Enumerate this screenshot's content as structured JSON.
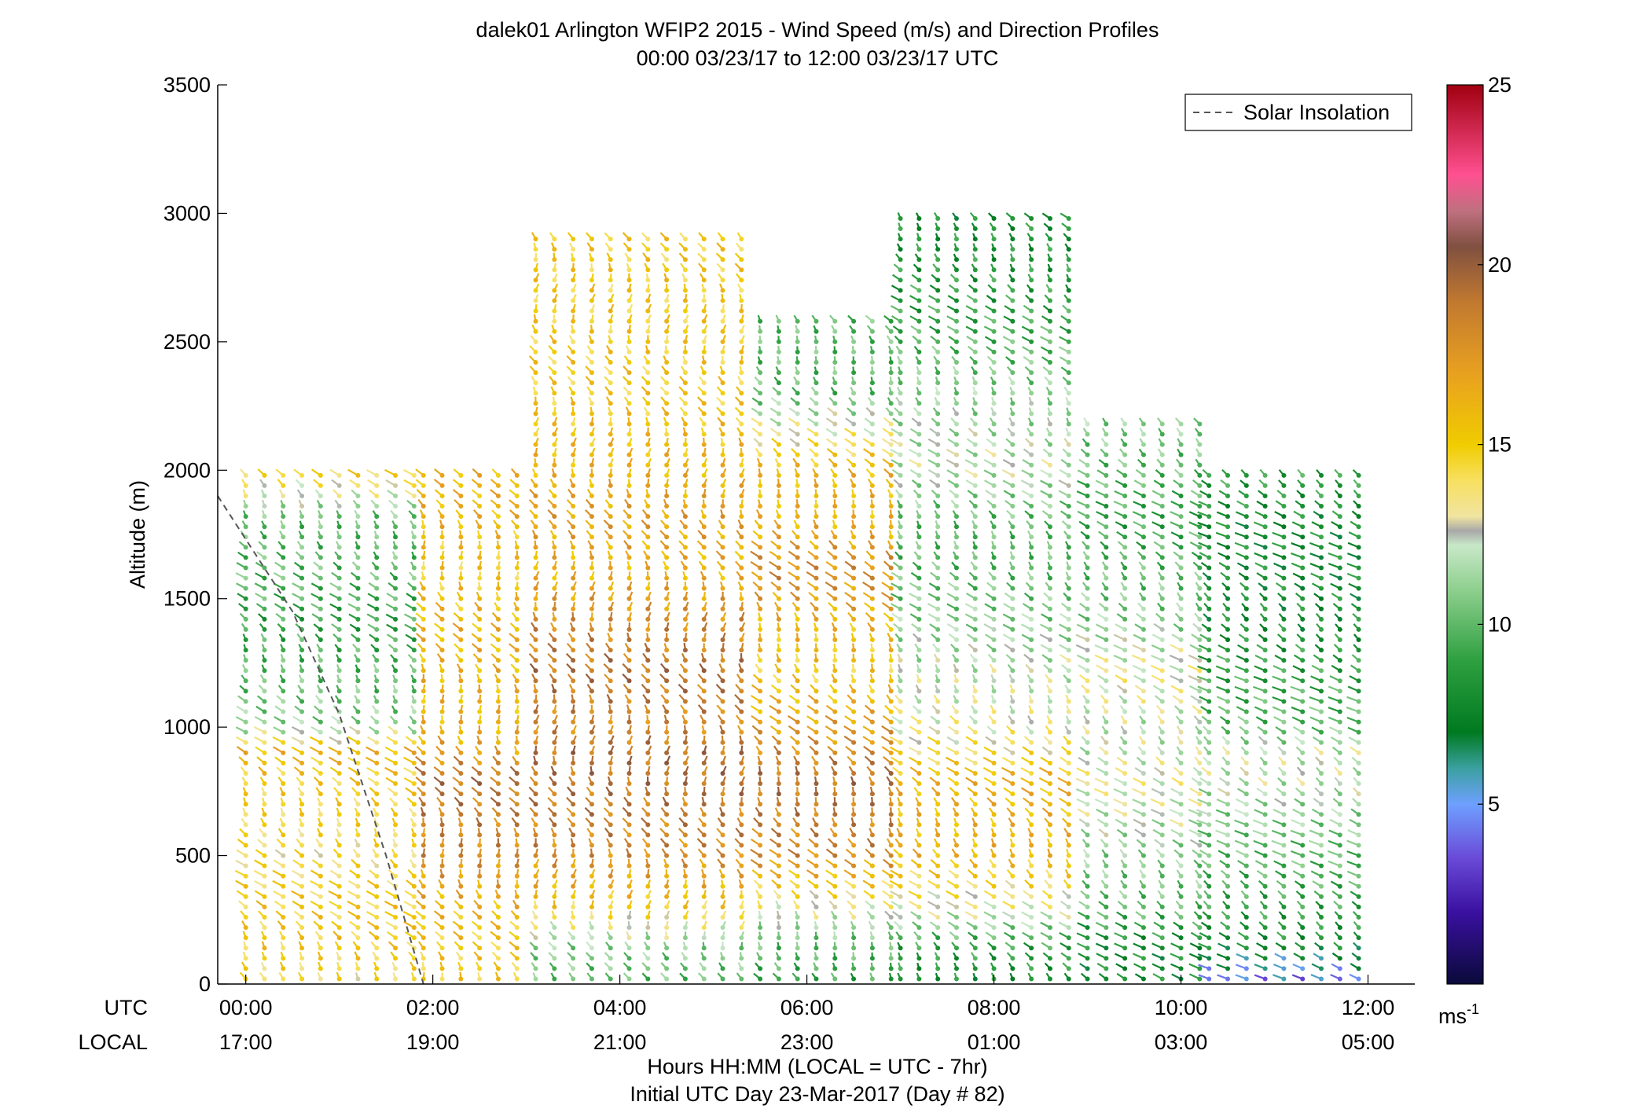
{
  "chart_data": {
    "type": "wind-profile",
    "title_line1": "dalek01 Arlington WFIP2 2015 - Wind Speed (m/s) and Direction Profiles",
    "title_line2": "00:00 03/23/17 to 12:00 03/23/17  UTC",
    "ylabel": "Altitude (m)",
    "xlabel_line1": "Hours HH:MM  (LOCAL = UTC - 7hr)",
    "xlabel_line2": "Initial UTC Day 23-Mar-2017 (Day # 82)",
    "utc_row_label": "UTC",
    "local_row_label": "LOCAL",
    "xlim": [
      -0.3,
      12.5
    ],
    "ylim": [
      0,
      3500
    ],
    "yticks": [
      0,
      500,
      1000,
      1500,
      2000,
      2500,
      3000,
      3500
    ],
    "xticks": [
      {
        "hour": 0,
        "utc": "00:00",
        "local": "17:00"
      },
      {
        "hour": 2,
        "utc": "02:00",
        "local": "19:00"
      },
      {
        "hour": 4,
        "utc": "04:00",
        "local": "21:00"
      },
      {
        "hour": 6,
        "utc": "06:00",
        "local": "23:00"
      },
      {
        "hour": 8,
        "utc": "08:00",
        "local": "01:00"
      },
      {
        "hour": 10,
        "utc": "10:00",
        "local": "03:00"
      },
      {
        "hour": 12,
        "utc": "12:00",
        "local": "05:00"
      }
    ],
    "legend": {
      "label": "Solar Insolation",
      "placement": "top-right",
      "style": "dashed gray"
    },
    "solar_insolation": [
      [
        -0.3,
        1900
      ],
      [
        0.5,
        1450
      ],
      [
        1.0,
        1050
      ],
      [
        1.5,
        500
      ],
      [
        1.9,
        0
      ]
    ],
    "colorbar": {
      "min": 0,
      "max": 25,
      "ticks": [
        5,
        10,
        15,
        20,
        25
      ],
      "unit": "ms",
      "unit_sup": "-1",
      "stops": [
        {
          "v": 0,
          "c": "#0a0a3a"
        },
        {
          "v": 2,
          "c": "#3a10a0"
        },
        {
          "v": 3.5,
          "c": "#6a4ad8"
        },
        {
          "v": 5,
          "c": "#6ea0ff"
        },
        {
          "v": 6,
          "c": "#3aa0a0"
        },
        {
          "v": 7,
          "c": "#007a20"
        },
        {
          "v": 9,
          "c": "#2ea040"
        },
        {
          "v": 11,
          "c": "#90d090"
        },
        {
          "v": 12.2,
          "c": "#c8e8c8"
        },
        {
          "v": 12.6,
          "c": "#a8a8a8"
        },
        {
          "v": 13,
          "c": "#f0e4a0"
        },
        {
          "v": 14,
          "c": "#f8e060"
        },
        {
          "v": 15,
          "c": "#f0cc00"
        },
        {
          "v": 17,
          "c": "#e8a020"
        },
        {
          "v": 19,
          "c": "#c07830"
        },
        {
          "v": 20.5,
          "c": "#805040"
        },
        {
          "v": 21.5,
          "c": "#c07080"
        },
        {
          "v": 22.5,
          "c": "#ff5090"
        },
        {
          "v": 25,
          "c": "#a00010"
        }
      ]
    },
    "series": [
      {
        "hour_from": 0,
        "hour_to": 1.9,
        "speeds": [
          [
            0,
            14
          ],
          [
            150,
            15
          ],
          [
            300,
            15
          ],
          [
            500,
            14
          ],
          [
            800,
            15
          ],
          [
            900,
            16
          ],
          [
            1000,
            11
          ],
          [
            1200,
            10
          ],
          [
            1400,
            9
          ],
          [
            1600,
            10
          ],
          [
            1800,
            10
          ],
          [
            2000,
            15
          ]
        ],
        "direction_deg": 250
      },
      {
        "hour_from": 1.9,
        "hour_to": 3.1,
        "speeds": [
          [
            0,
            15
          ],
          [
            150,
            15
          ],
          [
            300,
            16
          ],
          [
            500,
            18
          ],
          [
            800,
            19
          ],
          [
            900,
            17
          ],
          [
            1000,
            16
          ],
          [
            1200,
            16
          ],
          [
            1400,
            16
          ],
          [
            1600,
            15
          ],
          [
            1800,
            16
          ],
          [
            2000,
            16
          ]
        ],
        "direction_deg": 260
      },
      {
        "hour_from": 3.1,
        "hour_to": 5.5,
        "speeds": [
          [
            0,
            10
          ],
          [
            150,
            11
          ],
          [
            300,
            15
          ],
          [
            500,
            18
          ],
          [
            800,
            19
          ],
          [
            900,
            19
          ],
          [
            1000,
            18
          ],
          [
            1200,
            19
          ],
          [
            1400,
            18
          ],
          [
            1600,
            16
          ],
          [
            1800,
            17
          ],
          [
            2000,
            16
          ],
          [
            2300,
            15
          ],
          [
            2600,
            15
          ],
          [
            2900,
            15
          ]
        ],
        "direction_deg": 265
      },
      {
        "hour_from": 5.5,
        "hour_to": 7.0,
        "speeds": [
          [
            0,
            9
          ],
          [
            150,
            10
          ],
          [
            300,
            13
          ],
          [
            500,
            18
          ],
          [
            800,
            19
          ],
          [
            900,
            18
          ],
          [
            1000,
            17
          ],
          [
            1200,
            15
          ],
          [
            1400,
            16
          ],
          [
            1600,
            18
          ],
          [
            1800,
            16
          ],
          [
            2000,
            16
          ],
          [
            2300,
            10
          ],
          [
            2600,
            10
          ]
        ],
        "direction_deg": 255
      },
      {
        "hour_from": 7.0,
        "hour_to": 9.0,
        "speeds": [
          [
            0,
            8
          ],
          [
            150,
            9
          ],
          [
            300,
            13
          ],
          [
            500,
            16
          ],
          [
            800,
            16
          ],
          [
            900,
            14
          ],
          [
            1000,
            13
          ],
          [
            1200,
            12
          ],
          [
            1400,
            11
          ],
          [
            1600,
            10
          ],
          [
            1800,
            10
          ],
          [
            2000,
            12
          ],
          [
            2300,
            11
          ],
          [
            2600,
            9
          ],
          [
            3000,
            8
          ]
        ],
        "direction_deg": 250
      },
      {
        "hour_from": 9.0,
        "hour_to": 10.3,
        "speeds": [
          [
            0,
            8
          ],
          [
            150,
            8
          ],
          [
            300,
            10
          ],
          [
            500,
            11
          ],
          [
            800,
            13
          ],
          [
            900,
            12
          ],
          [
            1000,
            12
          ],
          [
            1200,
            13
          ],
          [
            1400,
            11
          ],
          [
            1600,
            10
          ],
          [
            1800,
            9
          ],
          [
            2000,
            10
          ],
          [
            2200,
            11
          ]
        ],
        "direction_deg": 245
      },
      {
        "hour_from": 10.3,
        "hour_to": 12.0,
        "speeds": [
          [
            0,
            4
          ],
          [
            150,
            8
          ],
          [
            300,
            9
          ],
          [
            500,
            10
          ],
          [
            800,
            12
          ],
          [
            900,
            12
          ],
          [
            1000,
            10
          ],
          [
            1200,
            9
          ],
          [
            1400,
            8
          ],
          [
            1600,
            8
          ],
          [
            1800,
            8
          ],
          [
            2000,
            9
          ]
        ],
        "direction_deg": 240
      }
    ]
  }
}
